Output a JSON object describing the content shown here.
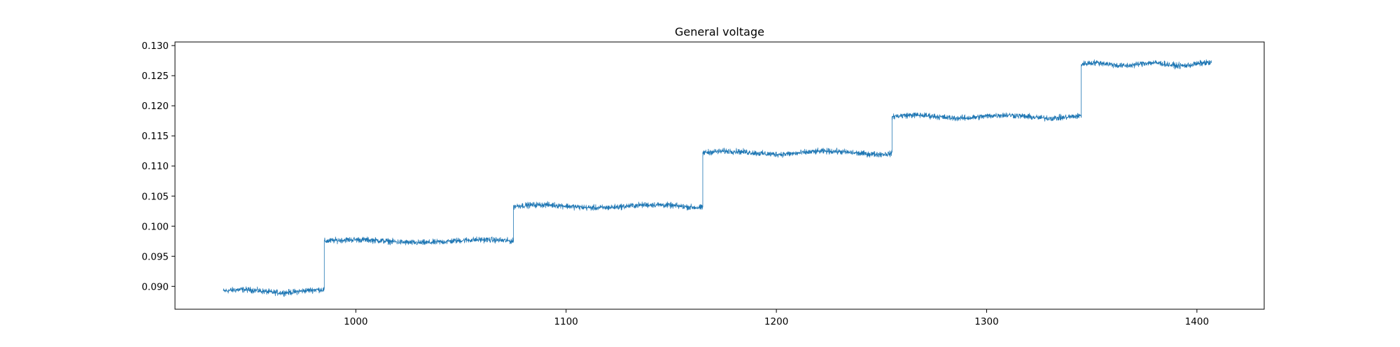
{
  "chart_data": {
    "type": "line",
    "title": "General voltage",
    "xlabel": "",
    "ylabel": "",
    "xlim": [
      914,
      1432
    ],
    "ylim": [
      0.0862,
      0.1306
    ],
    "x_ticks": [
      1000,
      1100,
      1200,
      1300,
      1400
    ],
    "x_tick_labels": [
      "1000",
      "1100",
      "1200",
      "1300",
      "1400"
    ],
    "y_ticks": [
      0.09,
      0.095,
      0.1,
      0.105,
      0.11,
      0.115,
      0.12,
      0.125,
      0.13
    ],
    "y_tick_labels": [
      "0.090",
      "0.095",
      "0.100",
      "0.105",
      "0.110",
      "0.115",
      "0.120",
      "0.125",
      "0.130"
    ],
    "grid": false,
    "legend": "none",
    "line_color": "#1f77b4",
    "noise_amplitude": 0.0007,
    "series": [
      {
        "segments": [
          {
            "x_start": 937,
            "x_end": 985,
            "y": 0.0892
          },
          {
            "x_start": 985,
            "x_end": 1075,
            "y": 0.0975
          },
          {
            "x_start": 1075,
            "x_end": 1165,
            "y": 0.1033
          },
          {
            "x_start": 1165,
            "x_end": 1255,
            "y": 0.1122
          },
          {
            "x_start": 1255,
            "x_end": 1345,
            "y": 0.1182
          },
          {
            "x_start": 1345,
            "x_end": 1407,
            "y": 0.1269
          }
        ]
      }
    ]
  }
}
